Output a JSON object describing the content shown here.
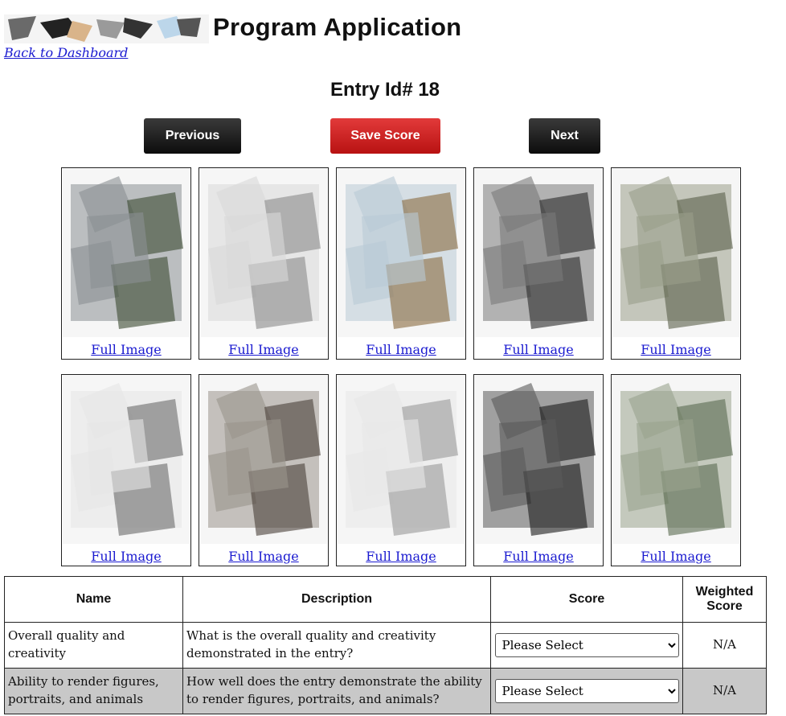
{
  "header": {
    "title": "Program Application",
    "back_link": "Back to Dashboard"
  },
  "entry": {
    "title": "Entry Id# 18"
  },
  "toolbar": {
    "previous_label": "Previous",
    "save_label": "Save Score",
    "next_label": "Next"
  },
  "gallery": {
    "link_label": "Full Image",
    "tiles": [
      {
        "tone": "#8a8f93",
        "accent": "#3b4a30"
      },
      {
        "tone": "#d8d8d8",
        "accent": "#8a8a8a"
      },
      {
        "tone": "#b9cad6",
        "accent": "#8a6a40"
      },
      {
        "tone": "#7a7a7a",
        "accent": "#2a2a2a"
      },
      {
        "tone": "#9a9f8a",
        "accent": "#5a5f4a"
      },
      {
        "tone": "#e6e6e6",
        "accent": "#6a6a6a"
      },
      {
        "tone": "#9a948c",
        "accent": "#4a4038"
      },
      {
        "tone": "#e8e8e8",
        "accent": "#9a9a9a"
      },
      {
        "tone": "#5a5a5a",
        "accent": "#1a1a1a"
      },
      {
        "tone": "#9aa48e",
        "accent": "#5a6a50"
      }
    ]
  },
  "score_table": {
    "headers": {
      "name": "Name",
      "description": "Description",
      "score": "Score",
      "weighted": "Weighted Score"
    },
    "rows": [
      {
        "name": "Overall quality and creativity",
        "description": "What is the overall quality and creativity demonstrated in the entry?",
        "score": "Please Select",
        "weighted": "N/A"
      },
      {
        "name": "Ability to render figures, portraits, and animals",
        "description": "How well does the entry demonstrate the ability to render figures, portraits, and animals?",
        "score": "Please Select",
        "weighted": "N/A"
      }
    ]
  }
}
